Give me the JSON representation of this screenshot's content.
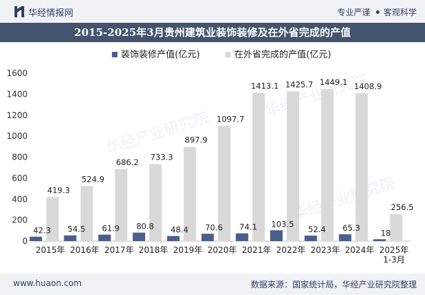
{
  "header": {
    "brand": "华经情报网",
    "tags": [
      "专业严谨",
      "客观科学"
    ],
    "title": "2015-2025年3月贵州建筑业装饰装修及在外省完成的产值"
  },
  "footer": {
    "website": "www.huaon.com",
    "source": "数据来源：国家统计局，华经产业研究院整理"
  },
  "watermarks": [
    "华经产业研究院",
    "www.huaon.com"
  ],
  "colors": {
    "series1": "#4a5f8c",
    "series2": "#d9d9d9",
    "title_bg": "#44536e",
    "brand": "#2e3f64"
  },
  "chart_data": {
    "type": "bar",
    "categories": [
      "2015年",
      "2016年",
      "2017年",
      "2018年",
      "2019年",
      "2020年",
      "2021年",
      "2022年",
      "2023年",
      "2024年",
      "2025年\n1-3月"
    ],
    "series": [
      {
        "name": "装饰装修产值(亿元)",
        "values": [
          42.3,
          54.5,
          61.9,
          80.8,
          48.4,
          70.6,
          74.1,
          103.5,
          52.4,
          65.3,
          18
        ]
      },
      {
        "name": "在外省完成的产值(亿元)",
        "values": [
          419.3,
          524.9,
          686.2,
          733.3,
          897.9,
          1097.7,
          1413.1,
          1425.7,
          1449.1,
          1408.9,
          256.5
        ]
      }
    ],
    "ylim": [
      0,
      1600
    ],
    "yticks": [
      0,
      200,
      400,
      600,
      800,
      1000,
      1200,
      1400,
      1600
    ],
    "legend_position": "top-center",
    "grid": false
  }
}
